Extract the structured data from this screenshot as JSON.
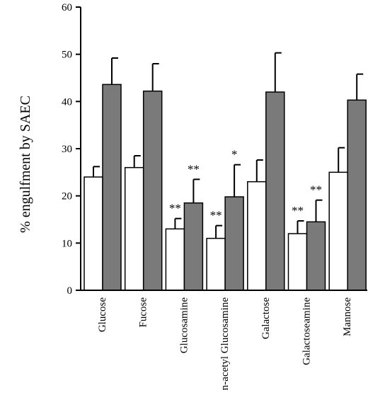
{
  "chart_data": {
    "type": "bar",
    "title": "",
    "xlabel": "",
    "ylabel": "% engulfment by SAEC",
    "ylim": [
      0,
      60
    ],
    "yticks": [
      0,
      10,
      20,
      30,
      40,
      50,
      60
    ],
    "grid": false,
    "legend": "none",
    "categories": [
      "Glucose",
      "Fucose",
      "Glucosamine",
      "n-acetyl Glucosamine",
      "Galactose",
      "Galactoseamine",
      "Mannose"
    ],
    "series": [
      {
        "color": "#ffffff",
        "values": [
          24,
          26,
          13,
          11,
          23,
          12,
          25
        ],
        "error": [
          2.2,
          2.5,
          2.2,
          2.7,
          4.6,
          2.7,
          5.2
        ],
        "significance": [
          "",
          "",
          "**",
          "**",
          "",
          "**",
          ""
        ]
      },
      {
        "color": "#7a7a7a",
        "values": [
          43.6,
          42.2,
          18.5,
          19.8,
          42,
          14.5,
          40.3
        ],
        "error": [
          5.6,
          5.8,
          5.0,
          6.8,
          8.3,
          4.6,
          5.5
        ],
        "significance": [
          "",
          "",
          "**",
          "*",
          "",
          "**",
          ""
        ]
      }
    ]
  }
}
